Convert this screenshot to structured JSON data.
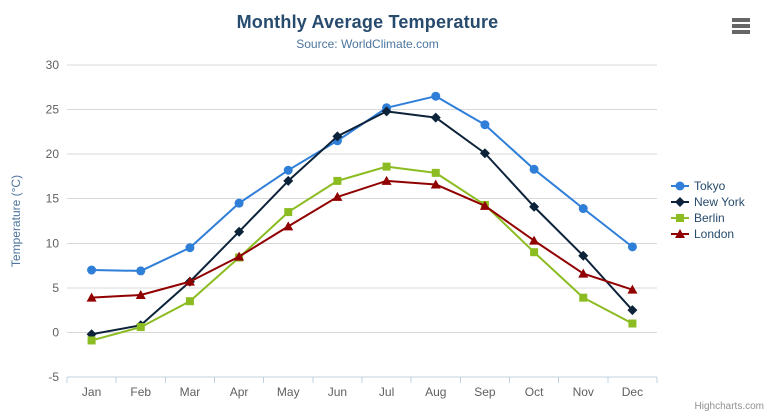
{
  "header": {
    "title": "Monthly Average Temperature",
    "subtitle": "Source: WorldClimate.com"
  },
  "footer": {
    "credits": "Highcharts.com"
  },
  "toolbar": {
    "context_menu_icon": "hamburger-icon"
  },
  "colors": {
    "title": "#274b6d",
    "subtitle": "#4d759e",
    "axis_label": "#606060",
    "axis_line": "#C0D0E0",
    "gridline": "#D8D8D8",
    "legend_text": "#274b6d",
    "credits": "#909090"
  },
  "chart_data": {
    "type": "line",
    "title": "Monthly Average Temperature",
    "subtitle": "Source: WorldClimate.com",
    "xlabel": "",
    "ylabel": "Temperature (°C)",
    "categories": [
      "Jan",
      "Feb",
      "Mar",
      "Apr",
      "May",
      "Jun",
      "Jul",
      "Aug",
      "Sep",
      "Oct",
      "Nov",
      "Dec"
    ],
    "ylim": [
      -5,
      30
    ],
    "yticks": [
      -5,
      0,
      5,
      10,
      15,
      20,
      25,
      30
    ],
    "ytick_labels": [
      "-5",
      "0",
      "5",
      "10",
      "15",
      "20",
      "25",
      "30"
    ],
    "grid": true,
    "legend_position": "right",
    "series": [
      {
        "name": "Tokyo",
        "color": "#2f7ed8",
        "marker": "circle",
        "values": [
          7.0,
          6.9,
          9.5,
          14.5,
          18.2,
          21.5,
          25.2,
          26.5,
          23.3,
          18.3,
          13.9,
          9.6
        ]
      },
      {
        "name": "New York",
        "color": "#0d233a",
        "marker": "diamond",
        "values": [
          -0.2,
          0.8,
          5.7,
          11.3,
          17.0,
          22.0,
          24.8,
          24.1,
          20.1,
          14.1,
          8.6,
          2.5
        ]
      },
      {
        "name": "Berlin",
        "color": "#8bbc21",
        "marker": "square",
        "values": [
          -0.9,
          0.6,
          3.5,
          8.4,
          13.5,
          17.0,
          18.6,
          17.9,
          14.3,
          9.0,
          3.9,
          1.0
        ]
      },
      {
        "name": "London",
        "color": "#910000",
        "marker": "triangle",
        "values": [
          3.9,
          4.2,
          5.7,
          8.5,
          11.9,
          15.2,
          17.0,
          16.6,
          14.2,
          10.3,
          6.6,
          4.8
        ]
      }
    ]
  }
}
